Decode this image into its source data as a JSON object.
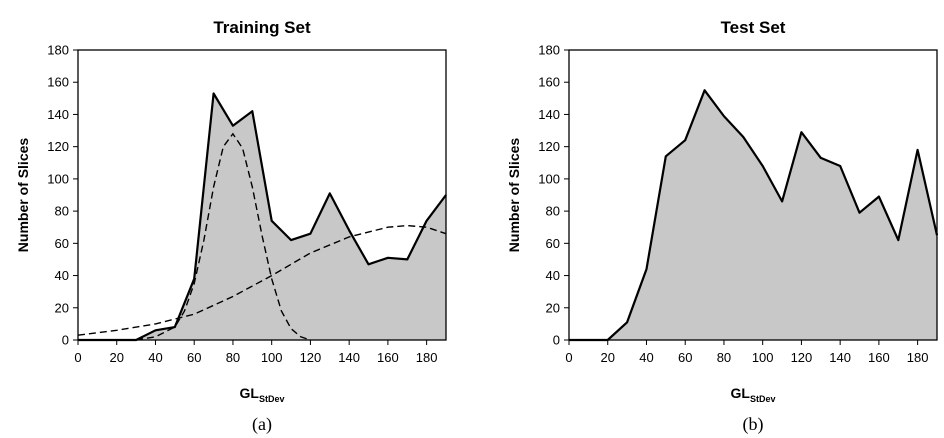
{
  "chart_data": [
    {
      "type": "area",
      "title": "Training Set",
      "xlabel": "GL",
      "xlabel_sub": "StDev",
      "ylabel": "Number of Slices",
      "caption": "(a)",
      "xlim": [
        0,
        190
      ],
      "ylim": [
        0,
        180
      ],
      "xticks": [
        0,
        20,
        40,
        60,
        80,
        100,
        120,
        140,
        160,
        180
      ],
      "yticks": [
        0,
        20,
        40,
        60,
        80,
        100,
        120,
        140,
        160,
        180
      ],
      "grid": false,
      "fill_color": "#c8c8c8",
      "series": [
        {
          "style": "area",
          "x": [
            0,
            30,
            40,
            50,
            60,
            70,
            80,
            90,
            100,
            110,
            120,
            130,
            140,
            150,
            160,
            170,
            180,
            190
          ],
          "y": [
            0,
            0,
            6,
            8,
            38,
            153,
            133,
            142,
            74,
            62,
            66,
            91,
            68,
            47,
            51,
            50,
            74,
            90
          ]
        },
        {
          "style": "dashed",
          "x": [
            30,
            40,
            50,
            55,
            60,
            65,
            70,
            75,
            80,
            85,
            90,
            95,
            100,
            105,
            110,
            115,
            120
          ],
          "y": [
            0,
            2,
            8,
            18,
            35,
            62,
            95,
            120,
            128,
            119,
            95,
            65,
            38,
            18,
            7,
            2,
            0
          ]
        },
        {
          "style": "dashed",
          "x": [
            0,
            20,
            40,
            60,
            80,
            100,
            120,
            140,
            160,
            170,
            180,
            190
          ],
          "y": [
            3,
            6,
            10,
            16,
            27,
            40,
            54,
            64,
            70,
            71,
            70,
            66
          ]
        }
      ]
    },
    {
      "type": "area",
      "title": "Test Set",
      "xlabel": "GL",
      "xlabel_sub": "StDev",
      "ylabel": "Number of Slices",
      "caption": "(b)",
      "xlim": [
        0,
        190
      ],
      "ylim": [
        0,
        180
      ],
      "xticks": [
        0,
        20,
        40,
        60,
        80,
        100,
        120,
        140,
        160,
        180
      ],
      "yticks": [
        0,
        20,
        40,
        60,
        80,
        100,
        120,
        140,
        160,
        180
      ],
      "grid": false,
      "fill_color": "#c8c8c8",
      "series": [
        {
          "style": "area",
          "x": [
            0,
            20,
            30,
            40,
            50,
            60,
            70,
            80,
            90,
            100,
            110,
            120,
            130,
            140,
            150,
            160,
            170,
            180,
            190
          ],
          "y": [
            0,
            0,
            11,
            44,
            114,
            124,
            155,
            139,
            126,
            108,
            86,
            129,
            113,
            108,
            79,
            89,
            62,
            118,
            65
          ]
        }
      ]
    }
  ]
}
